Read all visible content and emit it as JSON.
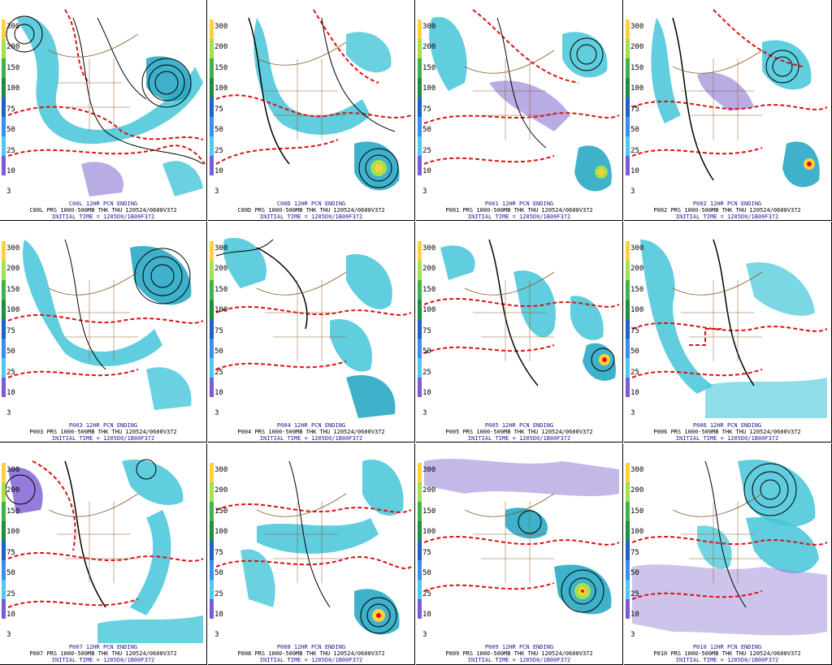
{
  "colorbar": {
    "ticks": [
      "300",
      "200",
      "150",
      "100",
      "75",
      "50",
      "25",
      "10",
      "3"
    ],
    "colors": [
      "#ffd23c",
      "#a6e04a",
      "#3cb44a",
      "#1e8e3e",
      "#1e62c8",
      "#3a8ef0",
      "#4fc8f0",
      "#7b5ad6",
      "#ffffff"
    ]
  },
  "colors": {
    "precip_light": "#9b88d8",
    "precip_mid": "#44c6d8",
    "precip_heavy": "#2aa9c4",
    "thickness": "#dd1111",
    "pressure": "#000000",
    "geography": "#8b5a2b",
    "caption": "#1a1a9a"
  },
  "panels": [
    {
      "caption1": "C00L 12HR PCN ENDING",
      "caption2": "C00L PRS 1000-500MB THK THU 120524/0600V372",
      "caption3": "INITIAL TIME = 1205D0/1B00F372"
    },
    {
      "caption1": "C00D 12HR PCN ENDING",
      "caption2": "C00D PRS 1000-500MB THK THU 120524/0600V372",
      "caption3": "INITIAL TIME = 1205D0/1B00F372"
    },
    {
      "caption1": "P001 12HR PCN ENDING",
      "caption2": "P001 PRS 1000-500MB THK THU 120524/0600V372",
      "caption3": "INITIAL TIME = 1205D0/1B00F372"
    },
    {
      "caption1": "P002 12HR PCN ENDING",
      "caption2": "P002 PRS 1000-500MB THK THU 120524/0600V372",
      "caption3": "INITIAL TIME = 1205D0/1B00F372"
    },
    {
      "caption1": "P003 12HR PCN ENDING",
      "caption2": "P003 PRS 1000-500MB THK THU 120524/0600V372",
      "caption3": "INITIAL TIME = 1205D0/1B00F372"
    },
    {
      "caption1": "P004 12HR PCN ENDING",
      "caption2": "P004 PRS 1000-500MB THK THU 120524/0600V372",
      "caption3": "INITIAL TIME = 1205D0/1B00F372"
    },
    {
      "caption1": "P005 12HR PCN ENDING",
      "caption2": "P005 PRS 1000-500MB THK THU 120524/0600V372",
      "caption3": "INITIAL TIME = 1205D0/1B00F372"
    },
    {
      "caption1": "P006 12HR PCN ENDING",
      "caption2": "P006 PRS 1000-500MB THK THU 120524/0600V372",
      "caption3": "INITIAL TIME = 1205D0/1B00F372"
    },
    {
      "caption1": "P007 12HR PCN ENDING",
      "caption2": "P007 PRS 1000-500MB THK THU 120524/0600V372",
      "caption3": "INITIAL TIME = 1205D0/1B00F372"
    },
    {
      "caption1": "P008 12HR PCN ENDING",
      "caption2": "P008 PRS 1000-500MB THK THU 120524/0600V372",
      "caption3": "INITIAL TIME = 1205D0/1B00F372"
    },
    {
      "caption1": "P009 12HR PCN ENDING",
      "caption2": "P009 PRS 1000-500MB THK THU 120524/0600V372",
      "caption3": "INITIAL TIME = 1205D0/1B00F372"
    },
    {
      "caption1": "P010 12HR PCN ENDING",
      "caption2": "P010 PRS 1000-500MB THK THU 120524/0600V372",
      "caption3": "INITIAL TIME = 1205D0/1B00F372"
    }
  ]
}
